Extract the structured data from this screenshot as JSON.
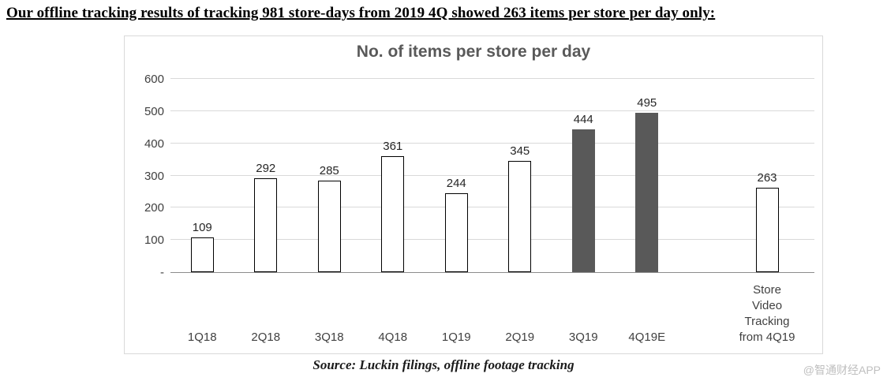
{
  "page": {
    "headline": "Our offline tracking results of tracking 981 store-days from 2019 4Q showed 263 items per store per day only:",
    "source": "Source: Luckin filings, offline footage tracking",
    "watermark": "@智通财经APP"
  },
  "chart_data": {
    "type": "bar",
    "title": "No. of items per store per day",
    "categories": [
      "1Q18",
      "2Q18",
      "3Q18",
      "4Q18",
      "1Q19",
      "2Q19",
      "3Q19",
      "4Q19E",
      "Store\nVideo\nTracking\nfrom 4Q19"
    ],
    "values": [
      109,
      292,
      285,
      361,
      244,
      345,
      444,
      495,
      263
    ],
    "bar_styles": [
      "outline",
      "outline",
      "outline",
      "outline",
      "outline",
      "outline",
      "filled",
      "filled",
      "outline"
    ],
    "xlabel": "",
    "ylabel": "",
    "ylim": [
      0,
      600
    ],
    "ytick_step": 100,
    "ytick_zero_label": "-",
    "grid": true,
    "legend": "none",
    "colors": {
      "filled": "#595959",
      "outline_fill": "#ffffff",
      "outline_border": "#000000",
      "gridline": "#d9d9d9"
    }
  }
}
